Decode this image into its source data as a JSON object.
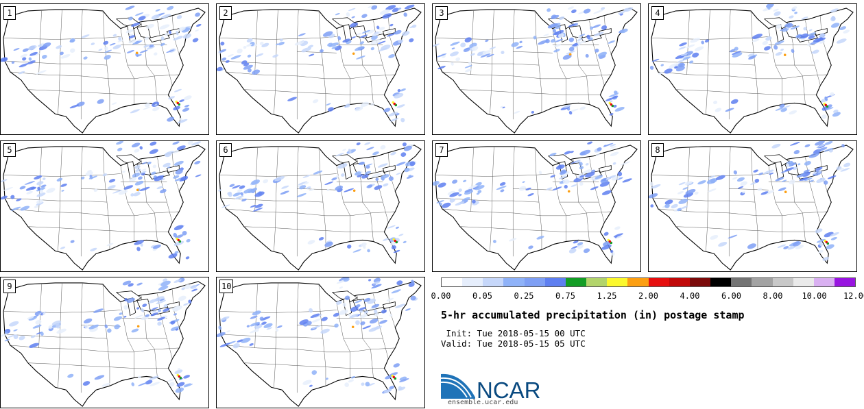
{
  "stamps": [
    {
      "label": "1"
    },
    {
      "label": "2"
    },
    {
      "label": "3"
    },
    {
      "label": "4"
    },
    {
      "label": "5"
    },
    {
      "label": "6"
    },
    {
      "label": "7"
    },
    {
      "label": "8"
    },
    {
      "label": "9"
    },
    {
      "label": "10"
    }
  ],
  "legend": {
    "colors": [
      "#ffffff",
      "#e6eefc",
      "#c6d7fa",
      "#8fb2f8",
      "#7e9ff4",
      "#5e7ff0",
      "#139d25",
      "#b2d46b",
      "#fbf82d",
      "#fc9f12",
      "#e60f0f",
      "#c10909",
      "#7b0b0b",
      "#000000",
      "#747474",
      "#a3a3a3",
      "#c8c8c8",
      "#eaeaea",
      "#d9b0f1",
      "#9814e0"
    ],
    "tick_labels": [
      "0.00",
      "0.05",
      "0.25",
      "0.75",
      "1.25",
      "2.00",
      "4.00",
      "6.00",
      "8.00",
      "10.00",
      "12.00"
    ]
  },
  "title": "5-hr accumulated precipitation (in) postage stamp",
  "init_line": " Init: Tue 2018-05-15 00 UTC",
  "valid_line": "Valid: Tue 2018-05-15 05 UTC",
  "logo": {
    "text": "NCAR",
    "color": "#0a4a80",
    "swoosh_color": "#1f73b8"
  },
  "logo_url": "ensemble.ucar.edu"
}
